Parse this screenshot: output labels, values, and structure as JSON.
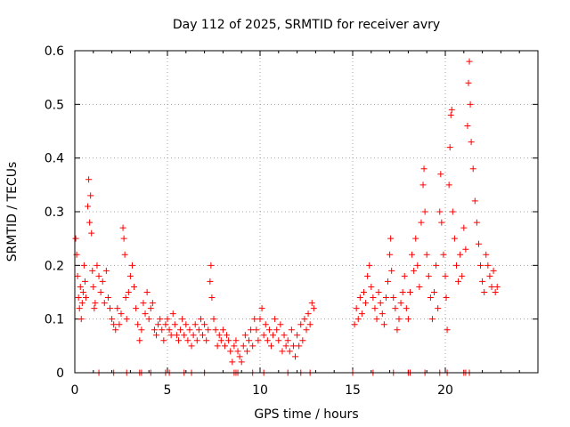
{
  "chart_data": {
    "type": "scatter",
    "title": "Day 112 of 2025, SRMTID for receiver avry",
    "xlabel": "GPS time / hours",
    "ylabel": "SRMTID / TECUs",
    "xlim": [
      0,
      25
    ],
    "ylim": [
      0,
      0.6
    ],
    "xticks": [
      0,
      5,
      10,
      15,
      20
    ],
    "yticks": [
      0,
      0.1,
      0.2,
      0.3,
      0.4,
      0.5,
      0.6
    ],
    "ytick_labels": [
      "0",
      "0.1",
      "0.2",
      "0.3",
      "0.4",
      "0.5",
      "0.6"
    ],
    "grid": true,
    "marker": "+",
    "color": "#ff0000",
    "series": [
      {
        "name": "avry",
        "points": [
          [
            0.05,
            0.25
          ],
          [
            0.1,
            0.22
          ],
          [
            0.15,
            0.18
          ],
          [
            0.2,
            0.14
          ],
          [
            0.25,
            0.12
          ],
          [
            0.3,
            0.16
          ],
          [
            0.35,
            0.1
          ],
          [
            0.4,
            0.13
          ],
          [
            0.45,
            0.15
          ],
          [
            0.5,
            0.2
          ],
          [
            0.55,
            0.17
          ],
          [
            0.6,
            0.14
          ],
          [
            0.7,
            0.31
          ],
          [
            0.75,
            0.36
          ],
          [
            0.8,
            0.28
          ],
          [
            0.85,
            0.33
          ],
          [
            0.9,
            0.26
          ],
          [
            0.95,
            0.19
          ],
          [
            1.0,
            0.16
          ],
          [
            1.05,
            0.12
          ],
          [
            1.1,
            0.13
          ],
          [
            1.2,
            0.2
          ],
          [
            1.3,
            0.18
          ],
          [
            1.4,
            0.15
          ],
          [
            1.5,
            0.17
          ],
          [
            1.6,
            0.13
          ],
          [
            1.7,
            0.19
          ],
          [
            1.8,
            0.14
          ],
          [
            1.9,
            0.12
          ],
          [
            2.0,
            0.1
          ],
          [
            2.1,
            0.09
          ],
          [
            2.2,
            0.08
          ],
          [
            2.3,
            0.12
          ],
          [
            2.4,
            0.09
          ],
          [
            2.5,
            0.11
          ],
          [
            2.6,
            0.27
          ],
          [
            2.65,
            0.25
          ],
          [
            2.7,
            0.22
          ],
          [
            2.75,
            0.14
          ],
          [
            2.8,
            0.1
          ],
          [
            2.9,
            0.15
          ],
          [
            3.0,
            0.18
          ],
          [
            3.1,
            0.2
          ],
          [
            3.2,
            0.16
          ],
          [
            3.3,
            0.12
          ],
          [
            3.4,
            0.09
          ],
          [
            3.5,
            0.06
          ],
          [
            3.6,
            0.08
          ],
          [
            3.7,
            0.13
          ],
          [
            3.8,
            0.11
          ],
          [
            3.9,
            0.15
          ],
          [
            4.0,
            0.1
          ],
          [
            4.1,
            0.12
          ],
          [
            4.2,
            0.13
          ],
          [
            4.3,
            0.08
          ],
          [
            4.4,
            0.07
          ],
          [
            4.5,
            0.09
          ],
          [
            4.6,
            0.1
          ],
          [
            4.7,
            0.08
          ],
          [
            4.8,
            0.06
          ],
          [
            4.9,
            0.09
          ],
          [
            5.0,
            0.1
          ],
          [
            5.1,
            0.08
          ],
          [
            5.2,
            0.07
          ],
          [
            5.3,
            0.11
          ],
          [
            5.4,
            0.09
          ],
          [
            5.5,
            0.07
          ],
          [
            5.6,
            0.06
          ],
          [
            5.7,
            0.08
          ],
          [
            5.8,
            0.1
          ],
          [
            5.9,
            0.07
          ],
          [
            6.0,
            0.09
          ],
          [
            6.1,
            0.06
          ],
          [
            6.2,
            0.08
          ],
          [
            6.3,
            0.05
          ],
          [
            6.4,
            0.07
          ],
          [
            6.5,
            0.09
          ],
          [
            6.6,
            0.06
          ],
          [
            6.7,
            0.08
          ],
          [
            6.8,
            0.1
          ],
          [
            6.9,
            0.07
          ],
          [
            7.0,
            0.09
          ],
          [
            7.1,
            0.06
          ],
          [
            7.2,
            0.08
          ],
          [
            7.3,
            0.17
          ],
          [
            7.35,
            0.2
          ],
          [
            7.4,
            0.14
          ],
          [
            7.5,
            0.1
          ],
          [
            7.6,
            0.08
          ],
          [
            7.7,
            0.05
          ],
          [
            7.8,
            0.07
          ],
          [
            7.9,
            0.06
          ],
          [
            8.0,
            0.08
          ],
          [
            8.1,
            0.05
          ],
          [
            8.2,
            0.07
          ],
          [
            8.3,
            0.06
          ],
          [
            8.4,
            0.04
          ],
          [
            8.5,
            0.02
          ],
          [
            8.6,
            0.05
          ],
          [
            8.7,
            0.06
          ],
          [
            8.8,
            0.04
          ],
          [
            8.9,
            0.03
          ],
          [
            9.0,
            0.02
          ],
          [
            9.1,
            0.05
          ],
          [
            9.2,
            0.07
          ],
          [
            9.3,
            0.04
          ],
          [
            9.4,
            0.06
          ],
          [
            9.5,
            0.08
          ],
          [
            9.6,
            0.05
          ],
          [
            9.7,
            0.1
          ],
          [
            9.8,
            0.08
          ],
          [
            9.9,
            0.06
          ],
          [
            10.0,
            0.1
          ],
          [
            10.1,
            0.12
          ],
          [
            10.2,
            0.07
          ],
          [
            10.3,
            0.09
          ],
          [
            10.4,
            0.06
          ],
          [
            10.5,
            0.08
          ],
          [
            10.6,
            0.05
          ],
          [
            10.7,
            0.07
          ],
          [
            10.8,
            0.1
          ],
          [
            10.9,
            0.08
          ],
          [
            11.0,
            0.06
          ],
          [
            11.1,
            0.09
          ],
          [
            11.2,
            0.04
          ],
          [
            11.3,
            0.07
          ],
          [
            11.4,
            0.05
          ],
          [
            11.5,
            0.06
          ],
          [
            11.6,
            0.04
          ],
          [
            11.7,
            0.08
          ],
          [
            11.8,
            0.05
          ],
          [
            11.9,
            0.03
          ],
          [
            12.0,
            0.07
          ],
          [
            12.1,
            0.05
          ],
          [
            12.2,
            0.09
          ],
          [
            12.3,
            0.06
          ],
          [
            12.4,
            0.1
          ],
          [
            12.5,
            0.08
          ],
          [
            12.6,
            0.11
          ],
          [
            12.7,
            0.09
          ],
          [
            12.8,
            0.13
          ],
          [
            12.9,
            0.12
          ],
          [
            15.1,
            0.09
          ],
          [
            15.2,
            0.12
          ],
          [
            15.3,
            0.1
          ],
          [
            15.4,
            0.14
          ],
          [
            15.5,
            0.11
          ],
          [
            15.6,
            0.15
          ],
          [
            15.7,
            0.13
          ],
          [
            15.8,
            0.18
          ],
          [
            15.9,
            0.2
          ],
          [
            16.0,
            0.16
          ],
          [
            16.1,
            0.14
          ],
          [
            16.2,
            0.12
          ],
          [
            16.3,
            0.1
          ],
          [
            16.4,
            0.15
          ],
          [
            16.5,
            0.13
          ],
          [
            16.6,
            0.11
          ],
          [
            16.7,
            0.09
          ],
          [
            16.8,
            0.14
          ],
          [
            16.9,
            0.17
          ],
          [
            17.0,
            0.22
          ],
          [
            17.05,
            0.25
          ],
          [
            17.1,
            0.19
          ],
          [
            17.2,
            0.14
          ],
          [
            17.3,
            0.12
          ],
          [
            17.4,
            0.08
          ],
          [
            17.5,
            0.1
          ],
          [
            17.6,
            0.13
          ],
          [
            17.7,
            0.15
          ],
          [
            17.8,
            0.18
          ],
          [
            17.9,
            0.12
          ],
          [
            18.0,
            0.1
          ],
          [
            18.1,
            0.15
          ],
          [
            18.2,
            0.22
          ],
          [
            18.3,
            0.19
          ],
          [
            18.4,
            0.25
          ],
          [
            18.5,
            0.2
          ],
          [
            18.6,
            0.16
          ],
          [
            18.7,
            0.28
          ],
          [
            18.8,
            0.35
          ],
          [
            18.85,
            0.38
          ],
          [
            18.9,
            0.3
          ],
          [
            19.0,
            0.22
          ],
          [
            19.1,
            0.18
          ],
          [
            19.2,
            0.14
          ],
          [
            19.3,
            0.1
          ],
          [
            19.4,
            0.15
          ],
          [
            19.5,
            0.2
          ],
          [
            19.6,
            0.12
          ],
          [
            19.7,
            0.3
          ],
          [
            19.75,
            0.37
          ],
          [
            19.8,
            0.28
          ],
          [
            19.9,
            0.22
          ],
          [
            20.0,
            0.18
          ],
          [
            20.05,
            0.14
          ],
          [
            20.1,
            0.08
          ],
          [
            20.2,
            0.35
          ],
          [
            20.25,
            0.42
          ],
          [
            20.3,
            0.48
          ],
          [
            20.35,
            0.49
          ],
          [
            20.4,
            0.3
          ],
          [
            20.5,
            0.25
          ],
          [
            20.6,
            0.2
          ],
          [
            20.7,
            0.17
          ],
          [
            20.8,
            0.22
          ],
          [
            20.9,
            0.18
          ],
          [
            21.0,
            0.27
          ],
          [
            21.1,
            0.23
          ],
          [
            21.2,
            0.46
          ],
          [
            21.25,
            0.54
          ],
          [
            21.3,
            0.58
          ],
          [
            21.35,
            0.5
          ],
          [
            21.4,
            0.43
          ],
          [
            21.5,
            0.38
          ],
          [
            21.6,
            0.32
          ],
          [
            21.7,
            0.28
          ],
          [
            21.8,
            0.24
          ],
          [
            21.9,
            0.2
          ],
          [
            22.0,
            0.17
          ],
          [
            22.1,
            0.15
          ],
          [
            22.2,
            0.22
          ],
          [
            22.3,
            0.2
          ],
          [
            22.4,
            0.18
          ],
          [
            22.5,
            0.16
          ],
          [
            22.6,
            0.19
          ],
          [
            22.7,
            0.15
          ],
          [
            22.8,
            0.16
          ]
        ]
      }
    ],
    "zero_points_x": [
      1.3,
      2.1,
      2.8,
      3.5,
      3.6,
      4.1,
      4.9,
      5.1,
      5.9,
      6.3,
      7.0,
      8.6,
      8.7,
      8.8,
      9.6,
      10.2,
      11.5,
      12.2,
      12.7,
      15.0,
      16.1,
      17.2,
      18.0,
      18.1,
      18.9,
      19.7,
      20.1,
      21.0,
      21.1,
      21.3
    ]
  }
}
